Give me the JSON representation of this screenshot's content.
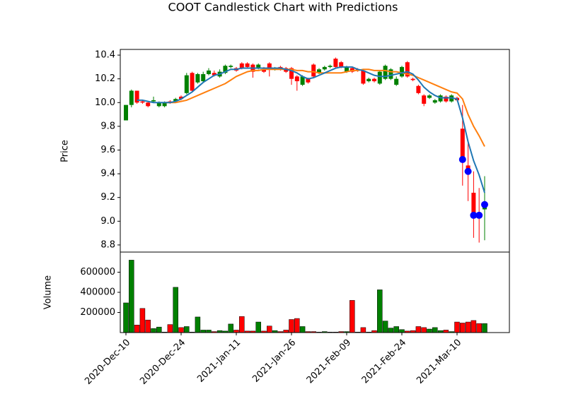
{
  "chart_data": [
    {
      "type": "candlestick",
      "title": "COOT Candlestick Chart with Predictions",
      "ylabel": "Price",
      "up_color": "#008000",
      "down_color": "#ff0000",
      "open": [
        9.85,
        9.98,
        10.1,
        10.01,
        10.0,
        10.01,
        9.97,
        9.97,
        10.01,
        10.01,
        10.05,
        10.08,
        10.25,
        10.17,
        10.18,
        10.24,
        10.25,
        10.22,
        10.25,
        10.3,
        10.29,
        10.33,
        10.33,
        10.32,
        10.29,
        10.28,
        10.33,
        10.28,
        10.3,
        10.29,
        10.29,
        10.22,
        10.15,
        10.2,
        10.32,
        10.25,
        10.28,
        10.3,
        10.37,
        10.34,
        10.26,
        10.29,
        10.28,
        10.27,
        10.18,
        10.2,
        10.16,
        10.2,
        10.2,
        10.15,
        10.22,
        10.34,
        10.2,
        10.14,
        10.06,
        10.04,
        10.0,
        10.01,
        10.05,
        10.01,
        10.04,
        9.78,
        9.47,
        9.24,
        9.07,
        9.1
      ],
      "high": [
        9.98,
        10.11,
        10.1,
        10.02,
        10.01,
        10.05,
        10.01,
        10.01,
        10.02,
        10.04,
        10.06,
        10.25,
        10.26,
        10.25,
        10.26,
        10.29,
        10.27,
        10.28,
        10.32,
        10.32,
        10.3,
        10.34,
        10.34,
        10.33,
        10.33,
        10.3,
        10.34,
        10.3,
        10.31,
        10.3,
        10.3,
        10.23,
        10.23,
        10.21,
        10.33,
        10.29,
        10.31,
        10.32,
        10.38,
        10.35,
        10.31,
        10.3,
        10.29,
        10.28,
        10.21,
        10.21,
        10.27,
        10.32,
        10.29,
        10.22,
        10.31,
        10.35,
        10.21,
        10.15,
        10.07,
        10.07,
        10.03,
        10.07,
        10.06,
        10.07,
        10.05,
        9.98,
        9.68,
        9.42,
        9.28,
        9.38
      ],
      "low": [
        9.85,
        9.96,
        9.99,
        9.99,
        9.96,
        10.0,
        9.96,
        9.96,
        9.99,
        10.0,
        10.02,
        10.07,
        10.09,
        10.16,
        10.17,
        10.23,
        10.22,
        10.21,
        10.24,
        10.29,
        10.26,
        10.28,
        10.29,
        10.21,
        10.28,
        10.25,
        10.22,
        10.27,
        10.27,
        10.25,
        10.15,
        10.1,
        10.14,
        10.16,
        10.21,
        10.24,
        10.27,
        10.29,
        10.29,
        10.29,
        10.25,
        10.25,
        10.26,
        10.15,
        10.17,
        10.17,
        10.15,
        10.19,
        10.19,
        10.14,
        10.21,
        10.21,
        10.18,
        10.07,
        9.97,
        10.03,
        9.99,
        10.0,
        10.0,
        10.0,
        10.01,
        9.3,
        9.17,
        8.86,
        8.82,
        8.84
      ],
      "close": [
        9.98,
        10.1,
        10.0,
        10.0,
        9.97,
        10.02,
        10.0,
        10.0,
        10.0,
        10.03,
        10.03,
        10.23,
        10.1,
        10.24,
        10.24,
        10.27,
        10.23,
        10.26,
        10.31,
        10.31,
        10.27,
        10.29,
        10.3,
        10.26,
        10.32,
        10.26,
        10.28,
        10.29,
        10.28,
        10.26,
        10.2,
        10.18,
        10.22,
        10.17,
        10.22,
        10.28,
        10.3,
        10.31,
        10.3,
        10.3,
        10.3,
        10.26,
        10.27,
        10.16,
        10.2,
        10.18,
        10.26,
        10.31,
        10.28,
        10.2,
        10.3,
        10.22,
        10.19,
        10.08,
        9.99,
        10.06,
        10.02,
        10.06,
        10.01,
        10.06,
        10.02,
        9.54,
        9.44,
        9.05,
        9.05,
        9.13
      ],
      "series": [
        {
          "color": "#ff7f0e",
          "style": "line",
          "values": [
            null,
            null,
            null,
            null,
            null,
            null,
            null,
            10.0,
            10.0,
            10.0,
            10.01,
            10.02,
            10.04,
            10.06,
            10.08,
            10.1,
            10.12,
            10.14,
            10.16,
            10.19,
            10.22,
            10.24,
            10.26,
            10.27,
            10.27,
            10.28,
            10.28,
            10.28,
            10.28,
            10.28,
            10.28,
            10.27,
            10.27,
            10.26,
            10.26,
            10.25,
            10.25,
            10.25,
            10.25,
            10.25,
            10.26,
            10.27,
            10.27,
            10.28,
            10.28,
            10.27,
            10.27,
            10.27,
            10.26,
            10.26,
            10.25,
            10.24,
            10.23,
            10.21,
            10.19,
            10.17,
            10.15,
            10.13,
            10.11,
            10.09,
            10.08,
            10.03,
            9.9,
            9.8,
            9.72,
            9.63
          ]
        },
        {
          "color": "#1f77b4",
          "style": "line",
          "values": [
            null,
            null,
            10.02,
            10.02,
            10.01,
            10.0,
            10.0,
            10.0,
            10.0,
            10.01,
            10.03,
            10.06,
            10.09,
            10.13,
            10.17,
            10.2,
            10.23,
            10.24,
            10.26,
            10.28,
            10.28,
            10.29,
            10.29,
            10.29,
            10.29,
            10.29,
            10.29,
            10.29,
            10.29,
            10.28,
            10.27,
            10.25,
            10.22,
            10.2,
            10.21,
            10.23,
            10.25,
            10.27,
            10.29,
            10.3,
            10.3,
            10.3,
            10.28,
            10.27,
            10.25,
            10.23,
            10.22,
            10.22,
            10.23,
            10.24,
            10.25,
            10.26,
            10.24,
            10.19,
            10.13,
            10.09,
            10.06,
            10.04,
            10.04,
            10.04,
            10.03,
            9.87,
            9.67,
            9.51,
            9.39,
            9.24
          ]
        },
        {
          "color": "#0000ff",
          "style": "marker",
          "values": [
            null,
            null,
            null,
            null,
            null,
            null,
            null,
            null,
            null,
            null,
            null,
            null,
            null,
            null,
            null,
            null,
            null,
            null,
            null,
            null,
            null,
            null,
            null,
            null,
            null,
            null,
            null,
            null,
            null,
            null,
            null,
            null,
            null,
            null,
            null,
            null,
            null,
            null,
            null,
            null,
            null,
            null,
            null,
            null,
            null,
            null,
            null,
            null,
            null,
            null,
            null,
            null,
            null,
            null,
            null,
            null,
            null,
            null,
            null,
            null,
            null,
            9.52,
            9.42,
            9.05,
            9.05,
            9.14
          ]
        }
      ],
      "ylim": [
        8.74,
        10.448
      ],
      "yticks": [
        8.8,
        {
          "value": 9.0,
          "label": "9.0"
        },
        9.2,
        9.4,
        9.6,
        9.8,
        {
          "value": 10.0,
          "label": "10.0"
        },
        10.2,
        10.4
      ]
    },
    {
      "type": "bar",
      "ylabel": "Volume",
      "categories": [
        "2020-Dec-10",
        null,
        null,
        null,
        null,
        null,
        null,
        null,
        null,
        null,
        "2020-Dec-24",
        null,
        null,
        null,
        null,
        null,
        null,
        null,
        null,
        null,
        "2021-Jan-11",
        null,
        null,
        null,
        null,
        null,
        null,
        null,
        null,
        null,
        "2021-Jan-26",
        null,
        null,
        null,
        null,
        null,
        null,
        null,
        null,
        null,
        "2021-Feb-09",
        null,
        null,
        null,
        null,
        null,
        null,
        null,
        null,
        null,
        "2021-Feb-24",
        null,
        null,
        null,
        null,
        null,
        null,
        null,
        null,
        null,
        "2021-Mar-10",
        null,
        null,
        null,
        null,
        null
      ],
      "values": [
        295000,
        720000,
        75000,
        240000,
        125000,
        40000,
        55000,
        5000,
        80000,
        450000,
        50000,
        60000,
        5000,
        155000,
        25000,
        25000,
        10000,
        20000,
        15000,
        85000,
        25000,
        160000,
        15000,
        15000,
        105000,
        15000,
        65000,
        20000,
        10000,
        25000,
        130000,
        140000,
        60000,
        10000,
        10000,
        5000,
        10000,
        5000,
        5000,
        10000,
        10000,
        320000,
        5000,
        50000,
        5000,
        20000,
        425000,
        115000,
        45000,
        60000,
        30000,
        15000,
        20000,
        60000,
        50000,
        35000,
        50000,
        20000,
        25000,
        10000,
        105000,
        95000,
        105000,
        120000,
        90000,
        90000
      ],
      "ylim": [
        0,
        800000
      ],
      "yticks": [
        200000,
        400000,
        600000
      ]
    }
  ]
}
